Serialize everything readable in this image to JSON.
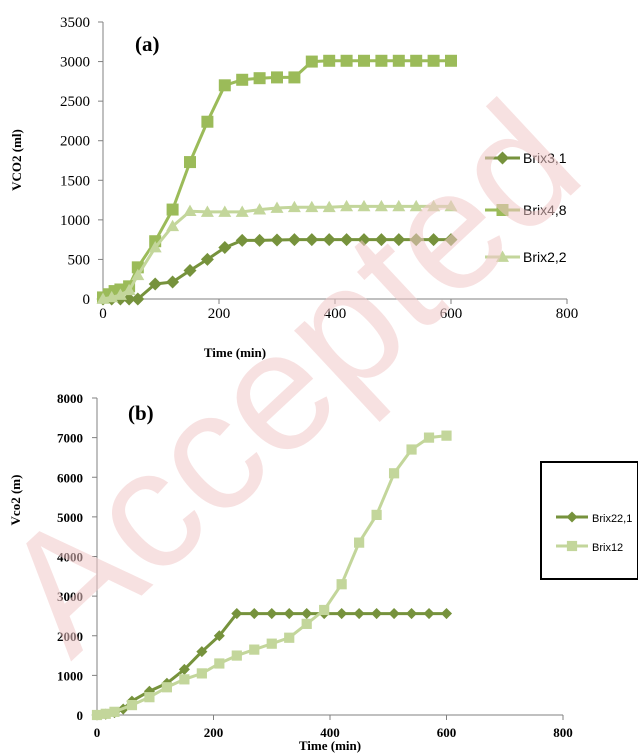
{
  "watermark": "Accepted",
  "chart_data": [
    {
      "type": "line",
      "panel_label": "(a)",
      "xlabel": "Time (min)",
      "ylabel": "VCO2 (ml)",
      "xlim": [
        0,
        800
      ],
      "ylim": [
        0,
        3500
      ],
      "xticks": [
        0,
        200,
        400,
        600,
        800
      ],
      "yticks": [
        0,
        500,
        1000,
        1500,
        2000,
        2500,
        3000,
        3500
      ],
      "grid": false,
      "legend_position": "right",
      "series": [
        {
          "name": "Brix3,1",
          "marker": "diamond",
          "color": "#76923c",
          "x": [
            0,
            15,
            30,
            45,
            60,
            90,
            120,
            150,
            180,
            210,
            240,
            270,
            300,
            330,
            360,
            390,
            420,
            450,
            480,
            510,
            540,
            570,
            600
          ],
          "y": [
            0,
            0,
            0,
            0,
            0,
            190,
            215,
            360,
            500,
            650,
            740,
            740,
            745,
            750,
            750,
            750,
            750,
            750,
            750,
            750,
            750,
            750,
            750
          ]
        },
        {
          "name": "Brix4,8",
          "marker": "square",
          "color": "#9bbb59",
          "x": [
            0,
            10,
            20,
            30,
            45,
            60,
            90,
            120,
            150,
            180,
            210,
            240,
            270,
            300,
            330,
            360,
            390,
            420,
            450,
            480,
            510,
            540,
            570,
            600
          ],
          "y": [
            20,
            60,
            100,
            120,
            160,
            400,
            730,
            1130,
            1730,
            2240,
            2700,
            2770,
            2790,
            2800,
            2800,
            3000,
            3010,
            3010,
            3010,
            3010,
            3010,
            3010,
            3010,
            3010
          ]
        },
        {
          "name": "Brix2,2",
          "marker": "triangle",
          "color": "#c3d69b",
          "x": [
            0,
            15,
            30,
            45,
            60,
            90,
            120,
            150,
            180,
            210,
            240,
            270,
            300,
            330,
            360,
            390,
            420,
            450,
            480,
            510,
            540,
            570,
            600
          ],
          "y": [
            0,
            20,
            50,
            110,
            300,
            650,
            920,
            1110,
            1100,
            1100,
            1100,
            1130,
            1150,
            1160,
            1160,
            1160,
            1170,
            1170,
            1170,
            1170,
            1170,
            1170,
            1170
          ]
        }
      ]
    },
    {
      "type": "line",
      "panel_label": "(b)",
      "xlabel": "Time (min)",
      "ylabel": "Vco2 (m)",
      "xlim": [
        0,
        800
      ],
      "ylim": [
        0,
        8000
      ],
      "xticks": [
        0,
        200,
        400,
        600,
        800
      ],
      "yticks": [
        0,
        1000,
        2000,
        3000,
        4000,
        5000,
        6000,
        7000,
        8000
      ],
      "grid": false,
      "legend_position": "right",
      "series": [
        {
          "name": "Brix22,1",
          "marker": "diamond",
          "color": "#76923c",
          "x": [
            0,
            15,
            30,
            45,
            60,
            90,
            120,
            150,
            180,
            210,
            240,
            270,
            300,
            330,
            360,
            390,
            420,
            450,
            480,
            510,
            540,
            570,
            600
          ],
          "y": [
            0,
            20,
            60,
            150,
            350,
            600,
            800,
            1150,
            1600,
            2000,
            2560,
            2560,
            2560,
            2560,
            2560,
            2560,
            2560,
            2560,
            2560,
            2560,
            2560,
            2560,
            2560
          ]
        },
        {
          "name": "Brix12",
          "marker": "square",
          "color": "#c3d69b",
          "x": [
            0,
            15,
            30,
            60,
            90,
            120,
            150,
            180,
            210,
            240,
            270,
            300,
            330,
            360,
            390,
            420,
            450,
            480,
            510,
            540,
            570,
            600
          ],
          "y": [
            0,
            30,
            80,
            250,
            450,
            700,
            900,
            1050,
            1300,
            1500,
            1650,
            1800,
            1950,
            2300,
            2650,
            3300,
            4350,
            5050,
            6100,
            6700,
            7000,
            7050
          ]
        }
      ]
    }
  ]
}
